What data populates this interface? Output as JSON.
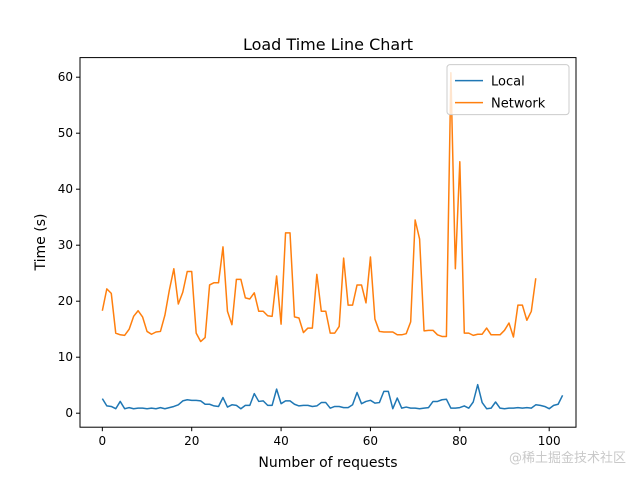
{
  "chart_data": {
    "type": "line",
    "title": "Load Time Line Chart",
    "xlabel": "Number of requests",
    "ylabel": "Time (s)",
    "xlim": [
      -5,
      106
    ],
    "ylim": [
      -2.5,
      63.5
    ],
    "xticks": [
      0,
      20,
      40,
      60,
      80,
      100
    ],
    "yticks": [
      0,
      10,
      20,
      30,
      40,
      50,
      60
    ],
    "grid": false,
    "legend_position": "top-right",
    "series": [
      {
        "name": "Local",
        "color": "#1f77b4",
        "values": [
          2.6,
          1.3,
          1.2,
          0.8,
          2.1,
          0.8,
          1.0,
          0.8,
          0.9,
          0.9,
          0.8,
          0.9,
          0.8,
          1.0,
          0.8,
          1.0,
          1.2,
          1.5,
          2.2,
          2.4,
          2.3,
          2.3,
          2.2,
          1.6,
          1.6,
          1.3,
          1.2,
          2.8,
          1.1,
          1.5,
          1.4,
          0.8,
          1.4,
          1.4,
          3.5,
          2.1,
          2.2,
          1.4,
          1.4,
          4.3,
          1.7,
          2.2,
          2.2,
          1.6,
          1.3,
          1.4,
          1.4,
          1.2,
          1.3,
          1.9,
          1.9,
          0.9,
          1.2,
          1.2,
          1.0,
          1.0,
          1.5,
          3.7,
          1.7,
          2.1,
          2.3,
          1.8,
          1.9,
          3.9,
          3.9,
          0.8,
          2.7,
          0.9,
          1.1,
          0.9,
          0.9,
          0.8,
          0.9,
          1.0,
          2.1,
          2.1,
          2.4,
          2.5,
          0.9,
          0.9,
          1.0,
          1.3,
          0.9,
          2.0,
          5.1,
          1.9,
          0.8,
          0.9,
          2.0,
          0.9,
          0.8,
          0.9,
          0.9,
          1.0,
          0.9,
          1.0,
          0.9,
          1.5,
          1.4,
          1.2,
          0.8,
          1.4,
          1.6,
          3.2
        ]
      },
      {
        "name": "Network",
        "color": "#ff7f0e",
        "values": [
          18.3,
          22.2,
          21.4,
          14.3,
          14.0,
          13.9,
          15.0,
          17.3,
          18.3,
          17.2,
          14.6,
          14.1,
          14.5,
          14.6,
          17.5,
          22.0,
          25.8,
          19.5,
          21.6,
          25.3,
          25.3,
          14.3,
          12.8,
          13.5,
          22.9,
          23.3,
          23.3,
          29.7,
          18.2,
          15.8,
          23.9,
          23.9,
          20.6,
          20.4,
          21.5,
          18.2,
          18.2,
          17.4,
          17.3,
          24.5,
          15.9,
          32.2,
          32.2,
          17.2,
          17.0,
          14.4,
          15.2,
          15.2,
          24.8,
          18.2,
          18.2,
          14.3,
          14.3,
          15.5,
          27.7,
          19.3,
          19.3,
          22.9,
          22.9,
          19.7,
          27.9,
          16.8,
          14.6,
          14.5,
          14.5,
          14.5,
          14.0,
          14.0,
          14.2,
          16.3,
          34.5,
          31.1,
          14.7,
          14.8,
          14.8,
          14.0,
          13.7,
          13.7,
          60.8,
          25.8,
          44.9,
          14.3,
          14.3,
          13.9,
          14.1,
          14.1,
          15.2,
          14.0,
          14.0,
          14.0,
          14.8,
          16.1,
          13.6,
          19.3,
          19.3,
          16.6,
          18.2,
          24.1
        ]
      }
    ]
  },
  "watermark": "@稀土掘金技术社区"
}
